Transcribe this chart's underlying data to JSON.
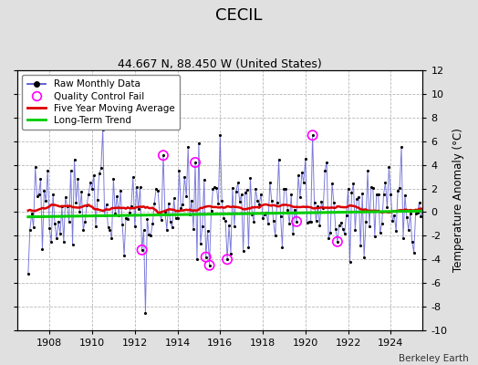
{
  "title": "CECIL",
  "subtitle": "44.667 N, 88.450 W (United States)",
  "credit": "Berkeley Earth",
  "ylabel": "Temperature Anomaly (°C)",
  "xlim": [
    1906.5,
    1925.5
  ],
  "ylim": [
    -10,
    12
  ],
  "yticks": [
    -10,
    -8,
    -6,
    -4,
    -2,
    0,
    2,
    4,
    6,
    8,
    10,
    12
  ],
  "xticks": [
    1908,
    1910,
    1912,
    1914,
    1916,
    1918,
    1920,
    1922,
    1924
  ],
  "bg_color": "#e0e0e0",
  "plot_bg_color": "#ffffff",
  "raw_line_color": "#4444cc",
  "raw_marker_color": "#000000",
  "ma_color": "#dd0000",
  "trend_color": "#00cc00",
  "qc_color": "#ff00ff",
  "title_fontsize": 13,
  "subtitle_fontsize": 9,
  "tick_fontsize": 8,
  "legend_fontsize": 7.5
}
